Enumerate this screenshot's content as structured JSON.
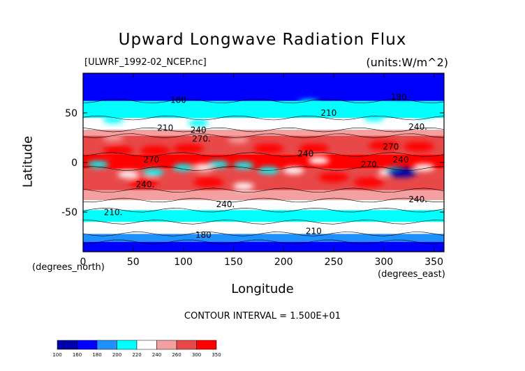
{
  "chart_data": {
    "type": "heatmap",
    "title": "Upward Longwave Radiation Flux",
    "subtitle_left": "[ULWRF_1992-02_NCEP.nc]",
    "subtitle_right": "(units:W/m^2)",
    "xlabel": "Longitude",
    "ylabel": "Latitude",
    "x_unit_label": "(degrees_east)",
    "y_unit_label": "(degrees_north)",
    "xlim": [
      0,
      360
    ],
    "ylim": [
      -90,
      90
    ],
    "x_ticks": [
      0,
      50,
      100,
      150,
      200,
      250,
      300,
      350
    ],
    "y_ticks": [
      -50,
      0,
      50
    ],
    "contour_interval_text": "CONTOUR INTERVAL = 1.500E+01",
    "colorbar_levels": [
      100,
      160,
      180,
      200,
      220,
      240,
      260,
      300,
      350
    ],
    "colorbar_colors": [
      "#0000a8",
      "#0000ff",
      "#1e90ff",
      "#00ffff",
      "#ffffff",
      "#f4a0a0",
      "#e84848",
      "#ff0000"
    ],
    "contour_labels": [
      {
        "text": "180",
        "lon": 95,
        "lat": 60
      },
      {
        "text": "180",
        "lon": 315,
        "lat": 63
      },
      {
        "text": "210",
        "lon": 245,
        "lat": 47
      },
      {
        "text": "210",
        "lon": 82,
        "lat": 32
      },
      {
        "text": "240",
        "lon": 115,
        "lat": 30
      },
      {
        "text": "240.",
        "lon": 334,
        "lat": 33
      },
      {
        "text": "270.",
        "lon": 118,
        "lat": 21
      },
      {
        "text": "240",
        "lon": 222,
        "lat": 6
      },
      {
        "text": "270",
        "lon": 307,
        "lat": 13
      },
      {
        "text": "240",
        "lon": 317,
        "lat": 0
      },
      {
        "text": "270",
        "lon": 285,
        "lat": -5
      },
      {
        "text": "270",
        "lon": 68,
        "lat": 0
      },
      {
        "text": "240.",
        "lon": 62,
        "lat": -25
      },
      {
        "text": "240.",
        "lon": 142,
        "lat": -45
      },
      {
        "text": "240.",
        "lon": 334,
        "lat": -40
      },
      {
        "text": "210.",
        "lon": 30,
        "lat": -53
      },
      {
        "text": "210",
        "lon": 230,
        "lat": -72
      },
      {
        "text": "180",
        "lon": 120,
        "lat": -76
      }
    ],
    "bands": [
      {
        "lat_top": 90,
        "lat_bot": 62,
        "value": 160
      },
      {
        "lat_top": 62,
        "lat_bot": 45,
        "value": 200
      },
      {
        "lat_top": 45,
        "lat_bot": 33,
        "value": 220
      },
      {
        "lat_top": 33,
        "lat_bot": 27,
        "value": 240
      },
      {
        "lat_top": 27,
        "lat_bot": 8,
        "value": 260
      },
      {
        "lat_top": 8,
        "lat_bot": -6,
        "value": 300
      },
      {
        "lat_top": -6,
        "lat_bot": -28,
        "value": 260
      },
      {
        "lat_top": -28,
        "lat_bot": -38,
        "value": 240
      },
      {
        "lat_top": -38,
        "lat_bot": -48,
        "value": 220
      },
      {
        "lat_top": -48,
        "lat_bot": -60,
        "value": 200
      },
      {
        "lat_top": -60,
        "lat_bot": -72,
        "value": 220
      },
      {
        "lat_top": -72,
        "lat_bot": -80,
        "value": 180
      },
      {
        "lat_top": -80,
        "lat_bot": -90,
        "value": 160
      }
    ],
    "features": [
      {
        "lon": 35,
        "lat": 12,
        "value": 300
      },
      {
        "lon": 72,
        "lat": 12,
        "value": 350
      },
      {
        "lon": 105,
        "lat": 14,
        "value": 300
      },
      {
        "lon": 185,
        "lat": 14,
        "value": 300
      },
      {
        "lon": 230,
        "lat": 14,
        "value": 300
      },
      {
        "lon": 300,
        "lat": 17,
        "value": 300
      },
      {
        "lon": 335,
        "lat": 16,
        "value": 300
      },
      {
        "lon": 155,
        "lat": 23,
        "value": 240
      },
      {
        "lon": 30,
        "lat": 25,
        "value": 240
      },
      {
        "lon": 115,
        "lat": 40,
        "value": 200
      },
      {
        "lon": 30,
        "lat": 43,
        "value": 200
      },
      {
        "lon": 290,
        "lat": 45,
        "value": 200
      },
      {
        "lon": 340,
        "lat": 48,
        "value": 200
      },
      {
        "lon": 225,
        "lat": 60,
        "value": 200
      },
      {
        "lon": 320,
        "lat": 70,
        "value": 160
      },
      {
        "lon": 15,
        "lat": -2,
        "value": 200
      },
      {
        "lon": 45,
        "lat": -12,
        "value": 220
      },
      {
        "lon": 70,
        "lat": -10,
        "value": 200
      },
      {
        "lon": 100,
        "lat": -5,
        "value": 200
      },
      {
        "lon": 120,
        "lat": -5,
        "value": 220
      },
      {
        "lon": 135,
        "lat": -2,
        "value": 200
      },
      {
        "lon": 160,
        "lat": -3,
        "value": 200
      },
      {
        "lon": 185,
        "lat": -8,
        "value": 200
      },
      {
        "lon": 210,
        "lat": -8,
        "value": 220
      },
      {
        "lon": 235,
        "lat": 2,
        "value": 220
      },
      {
        "lon": 125,
        "lat": -20,
        "value": 300
      },
      {
        "lon": 60,
        "lat": -20,
        "value": 300
      },
      {
        "lon": 250,
        "lat": -15,
        "value": 300
      },
      {
        "lon": 285,
        "lat": -20,
        "value": 350
      },
      {
        "lon": 160,
        "lat": -24,
        "value": 220
      },
      {
        "lon": 305,
        "lat": -10,
        "value": 220
      },
      {
        "lon": 312,
        "lat": -8,
        "value": 200
      },
      {
        "lon": 318,
        "lat": -10,
        "value": 100
      },
      {
        "lon": 340,
        "lat": -5,
        "value": 220
      }
    ]
  }
}
